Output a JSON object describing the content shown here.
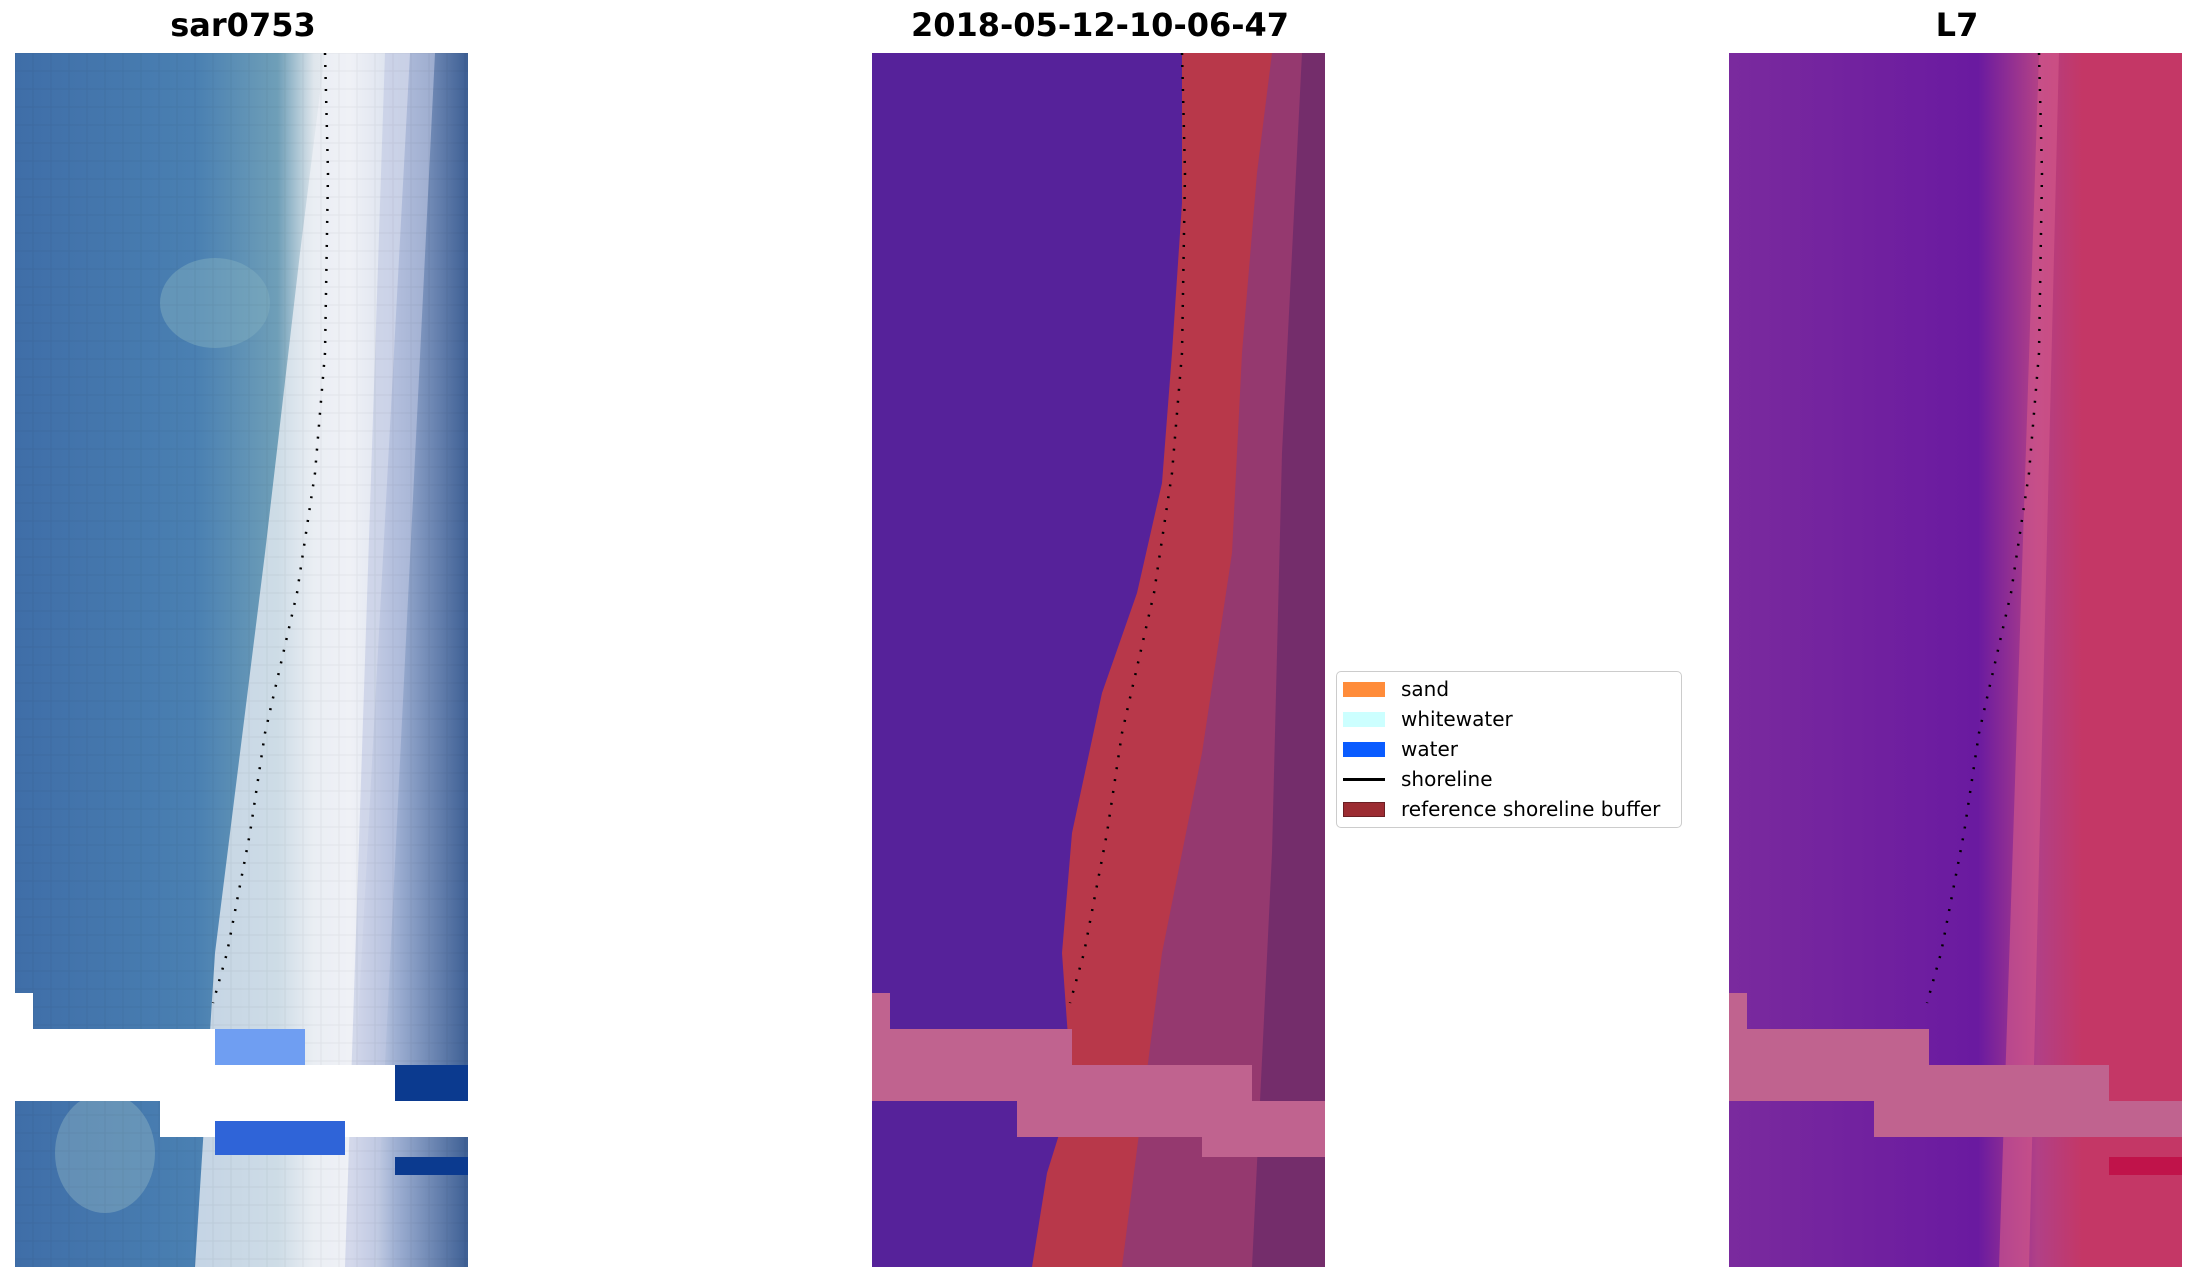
{
  "panels": [
    {
      "title": "sar0753"
    },
    {
      "title": "2018-05-12-10-06-47"
    },
    {
      "title": "L7"
    }
  ],
  "legend": {
    "items": [
      {
        "label": "sand",
        "kind": "patch",
        "color": "#ff8c3a"
      },
      {
        "label": "whitewater",
        "kind": "patch",
        "color": "#ccffff"
      },
      {
        "label": "water",
        "kind": "patch",
        "color": "#0a5cff"
      },
      {
        "label": "shoreline",
        "kind": "line",
        "color": "#000000"
      },
      {
        "label": "reference shoreline buffer",
        "kind": "patch",
        "color": "#9c2c32"
      }
    ]
  },
  "colors": {
    "sea_blue": "#4a78ad",
    "surf_white": "#eef0f5",
    "class_water": "#56229a",
    "class_buffer": "#b8384a",
    "l7_left": "#7a2a9e",
    "l7_right": "#c43766",
    "nodata_stripe": "#c0638f",
    "masked_blue": "#0b3a8f"
  }
}
